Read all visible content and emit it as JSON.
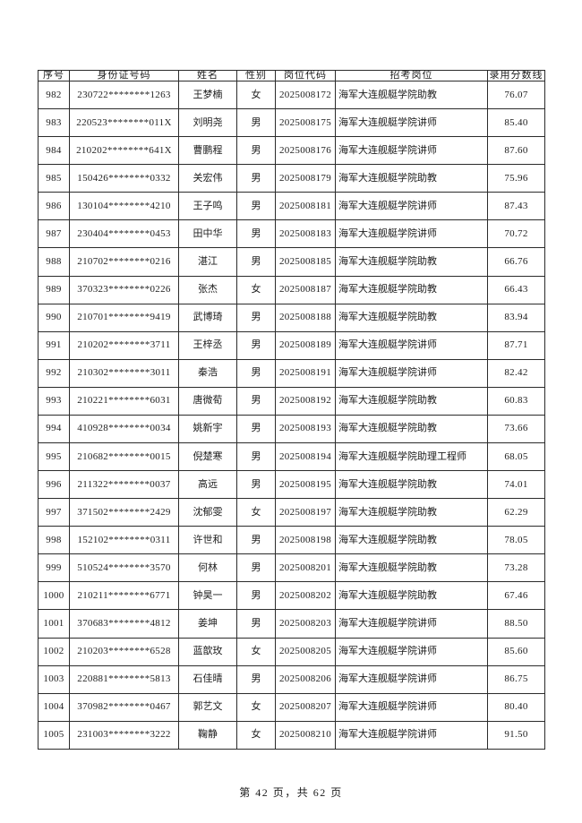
{
  "table": {
    "headers": [
      "序号",
      "身份证号码",
      "姓名",
      "性别",
      "岗位代码",
      "招考岗位",
      "录用分数线"
    ],
    "rows": [
      [
        "982",
        "230722********1263",
        "王梦楠",
        "女",
        "2025008172",
        "海军大连舰艇学院助教",
        "76.07"
      ],
      [
        "983",
        "220523********011X",
        "刘明尧",
        "男",
        "2025008175",
        "海军大连舰艇学院讲师",
        "85.40"
      ],
      [
        "984",
        "210202********641X",
        "曹鹏程",
        "男",
        "2025008176",
        "海军大连舰艇学院讲师",
        "87.60"
      ],
      [
        "985",
        "150426********0332",
        "关宏伟",
        "男",
        "2025008179",
        "海军大连舰艇学院助教",
        "75.96"
      ],
      [
        "986",
        "130104********4210",
        "王子鸣",
        "男",
        "2025008181",
        "海军大连舰艇学院讲师",
        "87.43"
      ],
      [
        "987",
        "230404********0453",
        "田中华",
        "男",
        "2025008183",
        "海军大连舰艇学院讲师",
        "70.72"
      ],
      [
        "988",
        "210702********0216",
        "湛江",
        "男",
        "2025008185",
        "海军大连舰艇学院助教",
        "66.76"
      ],
      [
        "989",
        "370323********0226",
        "张杰",
        "女",
        "2025008187",
        "海军大连舰艇学院助教",
        "66.43"
      ],
      [
        "990",
        "210701********9419",
        "武博琦",
        "男",
        "2025008188",
        "海军大连舰艇学院助教",
        "83.94"
      ],
      [
        "991",
        "210202********3711",
        "王梓丞",
        "男",
        "2025008189",
        "海军大连舰艇学院讲师",
        "87.71"
      ],
      [
        "992",
        "210302********3011",
        "秦浩",
        "男",
        "2025008191",
        "海军大连舰艇学院讲师",
        "82.42"
      ],
      [
        "993",
        "210221********6031",
        "唐微荀",
        "男",
        "2025008192",
        "海军大连舰艇学院助教",
        "60.83"
      ],
      [
        "994",
        "410928********0034",
        "姚新宇",
        "男",
        "2025008193",
        "海军大连舰艇学院助教",
        "73.66"
      ],
      [
        "995",
        "210682********0015",
        "倪楚寒",
        "男",
        "2025008194",
        "海军大连舰艇学院助理工程师",
        "68.05"
      ],
      [
        "996",
        "211322********0037",
        "高远",
        "男",
        "2025008195",
        "海军大连舰艇学院助教",
        "74.01"
      ],
      [
        "997",
        "371502********2429",
        "沈郁雯",
        "女",
        "2025008197",
        "海军大连舰艇学院助教",
        "62.29"
      ],
      [
        "998",
        "152102********0311",
        "许世和",
        "男",
        "2025008198",
        "海军大连舰艇学院助教",
        "78.05"
      ],
      [
        "999",
        "510524********3570",
        "何林",
        "男",
        "2025008201",
        "海军大连舰艇学院助教",
        "73.28"
      ],
      [
        "1000",
        "210211********6771",
        "钟昊一",
        "男",
        "2025008202",
        "海军大连舰艇学院助教",
        "67.46"
      ],
      [
        "1001",
        "370683********4812",
        "姜坤",
        "男",
        "2025008203",
        "海军大连舰艇学院讲师",
        "88.50"
      ],
      [
        "1002",
        "210203********6528",
        "蓝歆玫",
        "女",
        "2025008205",
        "海军大连舰艇学院讲师",
        "85.60"
      ],
      [
        "1003",
        "220881********5813",
        "石佳晴",
        "男",
        "2025008206",
        "海军大连舰艇学院讲师",
        "86.75"
      ],
      [
        "1004",
        "370982********0467",
        "郭艺文",
        "女",
        "2025008207",
        "海军大连舰艇学院讲师",
        "80.40"
      ],
      [
        "1005",
        "231003********3222",
        "鞠静",
        "女",
        "2025008210",
        "海军大连舰艇学院讲师",
        "91.50"
      ]
    ]
  },
  "footer": {
    "page_text": "第 42 页，共 62 页"
  }
}
